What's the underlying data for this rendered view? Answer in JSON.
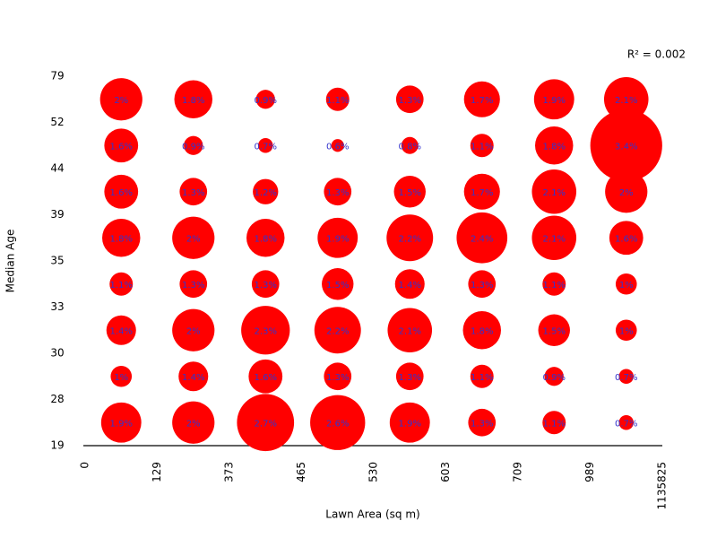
{
  "chart_data": {
    "type": "bubble-grid",
    "x_label": "Lawn Area (sq m)",
    "y_label": "Median Age",
    "annotation": "R² = 0.002",
    "xticks": [
      0,
      129,
      373,
      465,
      530,
      603,
      709,
      989,
      1135825
    ],
    "yticks": [
      19,
      28,
      30,
      33,
      35,
      39,
      44,
      52,
      79
    ],
    "color": "#ff0000",
    "label_color": "#3333cc",
    "values": [
      [
        1.9,
        2,
        2.7,
        2.6,
        1.9,
        1.3,
        1.1,
        0.7
      ],
      [
        1,
        1.4,
        1.6,
        1.3,
        1.3,
        1.1,
        0.9,
        0.7
      ],
      [
        1.4,
        2,
        2.3,
        2.2,
        2.1,
        1.8,
        1.5,
        1
      ],
      [
        1.1,
        1.3,
        1.3,
        1.5,
        1.4,
        1.3,
        1.1,
        1
      ],
      [
        1.8,
        2,
        1.8,
        1.9,
        2.2,
        2.4,
        2.1,
        1.6
      ],
      [
        1.6,
        1.3,
        1.2,
        1.3,
        1.5,
        1.7,
        2.1,
        2
      ],
      [
        1.6,
        0.9,
        0.7,
        0.6,
        0.8,
        1.1,
        1.8,
        3.4
      ],
      [
        2,
        1.8,
        0.9,
        1.1,
        1.3,
        1.7,
        1.9,
        2.1
      ]
    ],
    "value_labels": [
      [
        "1.9%",
        "2%",
        "2.7%",
        "2.6%",
        "1.9%",
        "1.3%",
        "1.1%",
        "0.7%"
      ],
      [
        "1%",
        "1.4%",
        "1.6%",
        "1.3%",
        "1.3%",
        "1.1%",
        "0.9%",
        "0.7%"
      ],
      [
        "1.4%",
        "2%",
        "2.3%",
        "2.2%",
        "2.1%",
        "1.8%",
        "1.5%",
        "1%"
      ],
      [
        "1.1%",
        "1.3%",
        "1.3%",
        "1.5%",
        "1.4%",
        "1.3%",
        "1.1%",
        "1%"
      ],
      [
        "1.8%",
        "2%",
        "1.8%",
        "1.9%",
        "2.2%",
        "2.4%",
        "2.1%",
        "1.6%"
      ],
      [
        "1.6%",
        "1.3%",
        "1.2%",
        "1.3%",
        "1.5%",
        "1.7%",
        "2.1%",
        "2%"
      ],
      [
        "1.6%",
        "0.9%",
        "0.7%",
        "0.6%",
        "0.8%",
        "1.1%",
        "1.8%",
        "3.4%"
      ],
      [
        "2%",
        "1.8%",
        "0.9%",
        "1.1%",
        "1.3%",
        "1.7%",
        "1.9%",
        "2.1%"
      ]
    ]
  }
}
